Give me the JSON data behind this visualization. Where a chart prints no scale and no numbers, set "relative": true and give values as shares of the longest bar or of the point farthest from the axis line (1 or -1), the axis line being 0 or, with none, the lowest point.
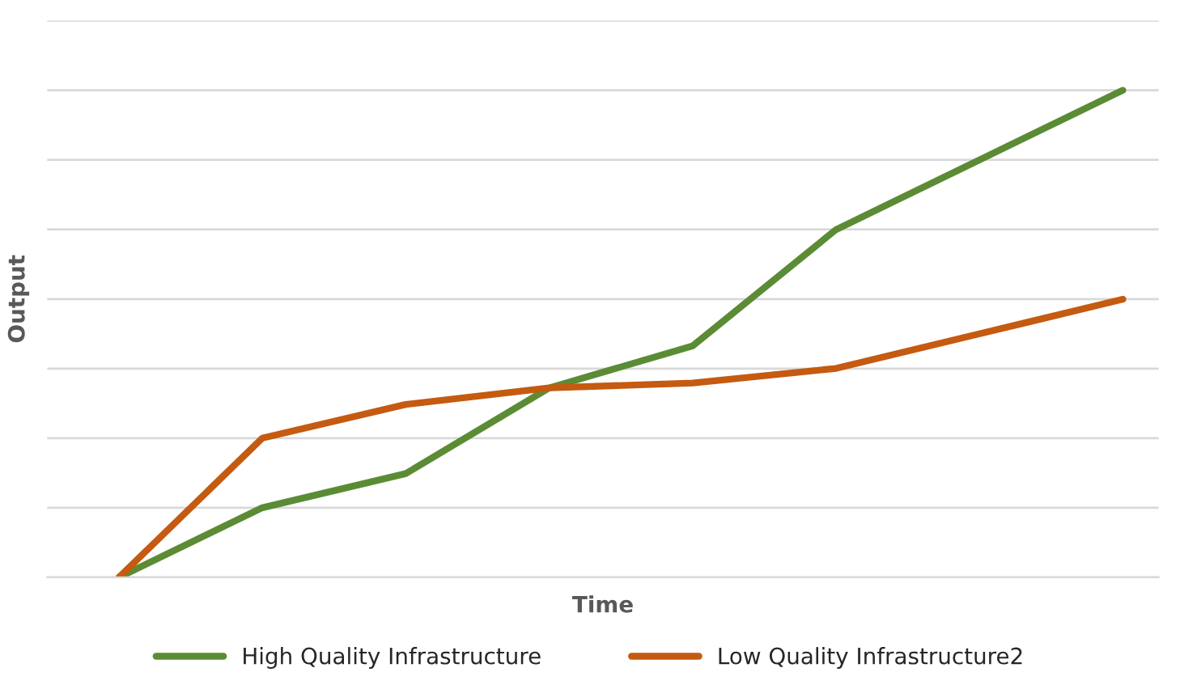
{
  "chart_data": {
    "type": "line",
    "relative": true,
    "xlabel": "Time",
    "ylabel": "Output",
    "categories": [
      null,
      null,
      null,
      null,
      null,
      null,
      null,
      null
    ],
    "series": [
      {
        "name": "High Quality Infrastructure",
        "color": "#5b8c35",
        "values": [
          0,
          0.143,
          0.213,
          0.389,
          0.475,
          0.714,
          0.857,
          1
        ]
      },
      {
        "name": "Low Quality Infrastructure2",
        "color": "#c55a11",
        "values": [
          0,
          0.286,
          0.355,
          0.389,
          0.399,
          0.429,
          0.5,
          0.571
        ]
      }
    ],
    "grid": "y",
    "legend": "bottom",
    "tick_labels": false,
    "marker": "none",
    "line_style": "solid"
  }
}
